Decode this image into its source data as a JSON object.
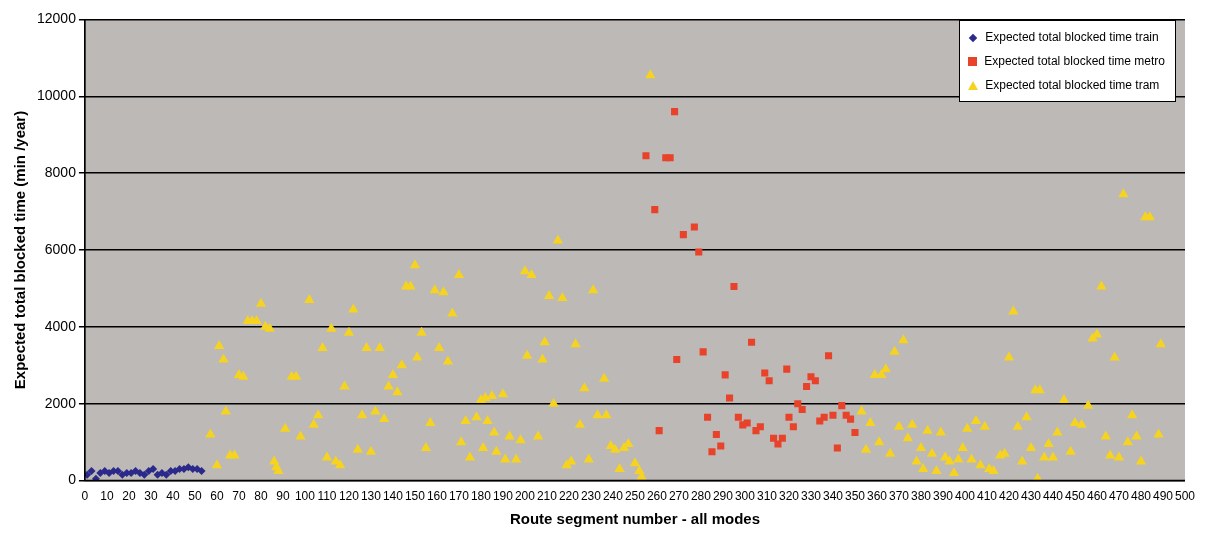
{
  "chart_data": {
    "type": "scatter",
    "xlabel": "Route segment number - all modes",
    "ylabel": "Expected total blocked time (min /year)",
    "xlim": [
      0,
      500
    ],
    "ylim": [
      0,
      12000
    ],
    "xticks": [
      0,
      10,
      20,
      30,
      40,
      50,
      60,
      70,
      80,
      90,
      100,
      110,
      120,
      130,
      140,
      150,
      160,
      170,
      180,
      190,
      200,
      210,
      220,
      230,
      240,
      250,
      260,
      270,
      280,
      290,
      300,
      310,
      320,
      330,
      340,
      350,
      360,
      370,
      380,
      390,
      400,
      410,
      420,
      430,
      440,
      450,
      460,
      470,
      480,
      490,
      500
    ],
    "yticks": [
      0,
      2000,
      4000,
      6000,
      8000,
      10000,
      12000
    ],
    "grid": "y",
    "legend": "top right",
    "series": [
      {
        "name": "Expected total blocked time train",
        "color": "#2b2a8a",
        "marker": "diamond",
        "x": [
          1,
          3,
          5,
          7,
          9,
          11,
          13,
          15,
          17,
          19,
          21,
          23,
          25,
          27,
          29,
          31,
          33,
          35,
          37,
          39,
          41,
          43,
          45,
          47,
          49,
          51,
          53
        ],
        "values": [
          150,
          250,
          50,
          200,
          250,
          200,
          250,
          250,
          150,
          200,
          200,
          250,
          200,
          150,
          250,
          300,
          150,
          200,
          150,
          250,
          250,
          300,
          300,
          350,
          300,
          300,
          250
        ]
      },
      {
        "name": "Expected total blocked time metro",
        "color": "#e8432a",
        "marker": "square",
        "x": [
          255,
          259,
          261,
          264,
          266,
          268,
          269,
          272,
          277,
          279,
          281,
          283,
          285,
          287,
          289,
          291,
          293,
          295,
          297,
          299,
          301,
          303,
          305,
          307,
          309,
          311,
          313,
          315,
          317,
          319,
          320,
          322,
          324,
          326,
          328,
          330,
          332,
          334,
          336,
          338,
          340,
          342,
          344,
          346,
          348,
          350
        ],
        "values": [
          8450,
          7050,
          1300,
          8400,
          8400,
          9600,
          3150,
          6400,
          6600,
          5950,
          3350,
          1650,
          750,
          1200,
          900,
          2750,
          2150,
          5050,
          1650,
          1450,
          1500,
          3600,
          1300,
          1400,
          2800,
          2600,
          1100,
          950,
          1100,
          2900,
          1650,
          1400,
          2000,
          1850,
          2450,
          2700,
          2600,
          1550,
          1650,
          3250,
          1700,
          850,
          1950,
          1700,
          1600,
          1250
        ]
      },
      {
        "name": "Expected total blocked time tram",
        "color": "#f5d320",
        "marker": "triangle",
        "x": [
          57,
          60,
          61,
          63,
          64,
          66,
          68,
          70,
          72,
          74,
          76,
          78,
          80,
          82,
          84,
          86,
          87,
          88,
          91,
          94,
          96,
          98,
          102,
          104,
          106,
          108,
          110,
          112,
          114,
          116,
          118,
          120,
          122,
          124,
          126,
          128,
          130,
          132,
          134,
          136,
          138,
          140,
          142,
          144,
          146,
          148,
          150,
          151,
          153,
          155,
          157,
          159,
          161,
          163,
          165,
          167,
          170,
          171,
          173,
          175,
          178,
          180,
          181,
          182,
          183,
          185,
          186,
          187,
          190,
          191,
          193,
          196,
          198,
          200,
          201,
          203,
          206,
          208,
          209,
          211,
          213,
          215,
          217,
          219,
          221,
          223,
          225,
          227,
          229,
          231,
          233,
          236,
          237,
          239,
          241,
          243,
          245,
          247,
          250,
          252,
          253,
          257,
          353,
          355,
          357,
          359,
          361,
          362,
          364,
          366,
          368,
          370,
          372,
          374,
          376,
          378,
          380,
          381,
          383,
          385,
          387,
          389,
          391,
          393,
          395,
          397,
          399,
          401,
          403,
          405,
          407,
          409,
          411,
          413,
          416,
          418,
          420,
          422,
          424,
          426,
          428,
          430,
          432,
          433,
          434,
          436,
          438,
          440,
          442,
          445,
          448,
          450,
          453,
          456,
          458,
          460,
          462,
          464,
          466,
          468,
          470,
          472,
          474,
          476,
          478,
          480,
          482,
          484,
          488,
          489
        ],
        "values": [
          1200,
          400,
          3500,
          3150,
          1800,
          650,
          650,
          2750,
          2700,
          4150,
          4150,
          4150,
          4600,
          4000,
          3950,
          500,
          350,
          250,
          1350,
          2700,
          2700,
          1150,
          4700,
          1450,
          1700,
          3450,
          600,
          3950,
          500,
          400,
          2450,
          3850,
          4450,
          800,
          1700,
          3450,
          750,
          1800,
          3450,
          1600,
          2450,
          2750,
          2300,
          3000,
          5050,
          5050,
          5600,
          3200,
          3850,
          850,
          1500,
          4950,
          3450,
          4900,
          3100,
          4350,
          5350,
          1000,
          1550,
          600,
          1650,
          2100,
          850,
          2150,
          1550,
          2200,
          1250,
          750,
          2250,
          550,
          1150,
          550,
          1050,
          5450,
          3250,
          5350,
          1150,
          3150,
          3600,
          4800,
          2000,
          6250,
          4750,
          400,
          500,
          3550,
          1450,
          2400,
          550,
          4950,
          1700,
          2650,
          1700,
          900,
          800,
          300,
          850,
          950,
          450,
          250,
          100,
          10550,
          1800,
          800,
          1500,
          2750,
          1000,
          2750,
          2900,
          700,
          3350,
          1400,
          3650,
          1100,
          1450,
          500,
          850,
          300,
          1300,
          700,
          250,
          1250,
          600,
          500,
          200,
          550,
          850,
          1350,
          550,
          1550,
          400,
          1400,
          300,
          250,
          650,
          700,
          3200,
          4400,
          1400,
          500,
          1650,
          850,
          2350,
          50,
          2350,
          600,
          950,
          600,
          1250,
          2100,
          750,
          1500,
          1450,
          1950,
          3700,
          3800,
          5050,
          1150,
          650,
          3200,
          600,
          7450,
          1000,
          1700,
          1150,
          500,
          6850,
          6850,
          1200,
          3550
        ]
      }
    ]
  }
}
